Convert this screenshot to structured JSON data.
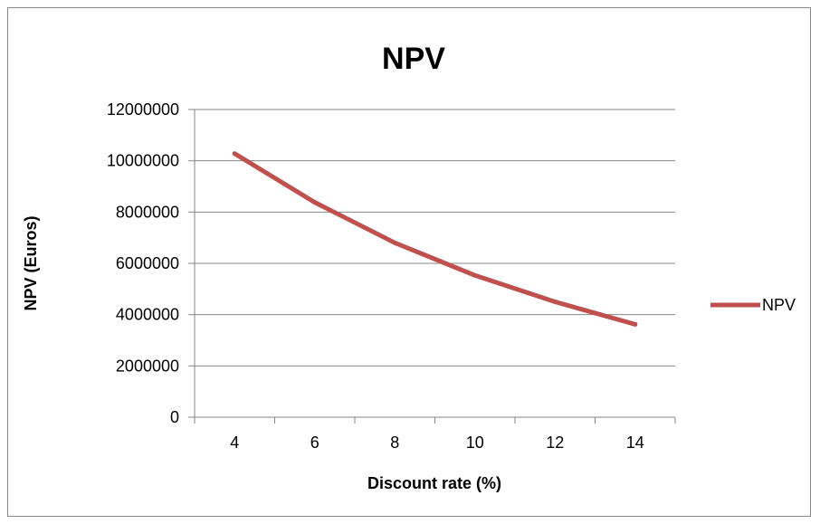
{
  "chart_data": {
    "type": "line",
    "title": "NPV",
    "xlabel": "Discount rate (%)",
    "ylabel": "NPV (Euros)",
    "x": [
      4,
      6,
      8,
      10,
      12,
      14
    ],
    "x_tick_labels": [
      "4",
      "6",
      "8",
      "10",
      "12",
      "14"
    ],
    "y_tick_labels": [
      "0",
      "2000000",
      "4000000",
      "6000000",
      "8000000",
      "10000000",
      "12000000"
    ],
    "y_ticks": [
      0,
      2000000,
      4000000,
      6000000,
      8000000,
      10000000,
      12000000
    ],
    "ylim": [
      0,
      12000000
    ],
    "grid": "horizontal",
    "legend_position": "right",
    "series": [
      {
        "name": "NPV",
        "color": "#C0504D",
        "values": [
          10280000,
          8380000,
          6800000,
          5530000,
          4500000,
          3620000
        ]
      }
    ]
  }
}
